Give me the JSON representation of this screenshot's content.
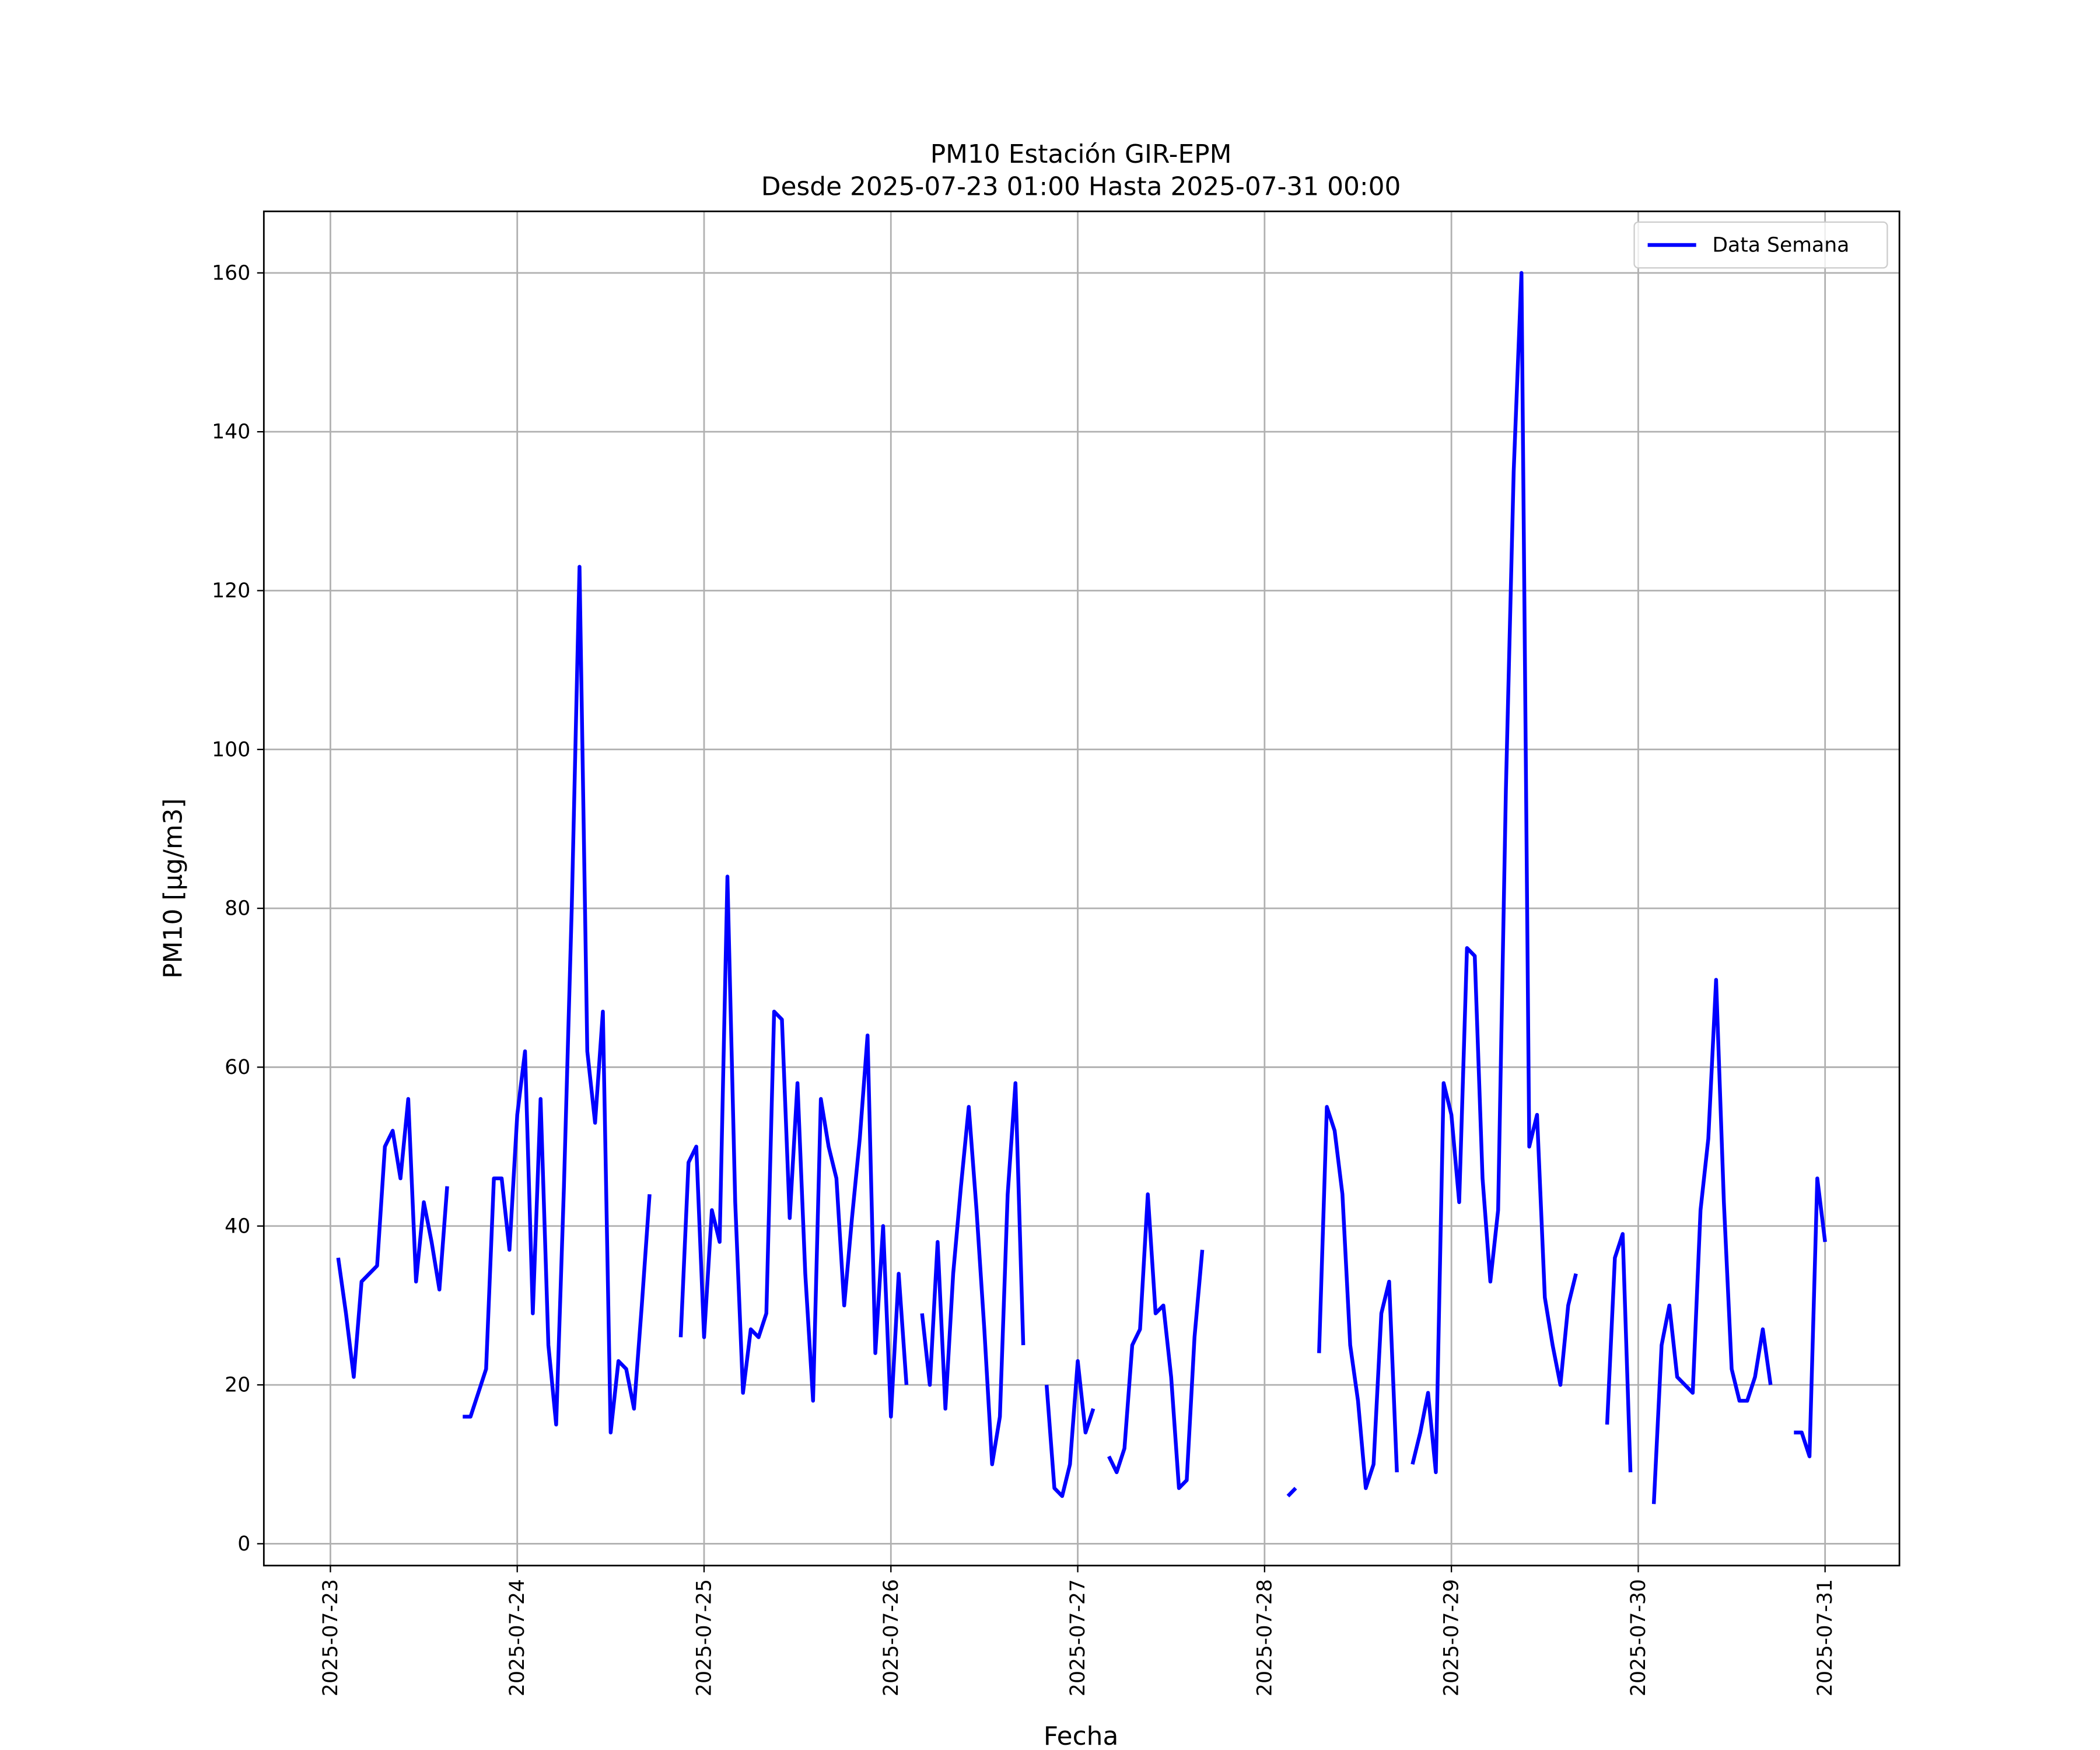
{
  "chart_data": {
    "type": "line",
    "title": "PM10 Estación GIR-EPM",
    "subtitle": "Desde 2025-07-23 01:00 Hasta 2025-07-31 00:00",
    "x_label": "Fecha",
    "y_label": "PM10 [μg/m3]",
    "x": [
      "2025-07-23 01:00",
      "2025-07-23 02:00",
      "2025-07-23 03:00",
      "2025-07-23 04:00",
      "2025-07-23 05:00",
      "2025-07-23 06:00",
      "2025-07-23 07:00",
      "2025-07-23 08:00",
      "2025-07-23 09:00",
      "2025-07-23 10:00",
      "2025-07-23 11:00",
      "2025-07-23 12:00",
      "2025-07-23 13:00",
      "2025-07-23 14:00",
      "2025-07-23 15:00",
      "2025-07-23 16:00",
      "2025-07-23 17:00",
      "2025-07-23 18:00",
      "2025-07-23 19:00",
      "2025-07-23 20:00",
      "2025-07-23 21:00",
      "2025-07-23 22:00",
      "2025-07-23 23:00",
      "2025-07-24 00:00",
      "2025-07-24 01:00",
      "2025-07-24 02:00",
      "2025-07-24 03:00",
      "2025-07-24 04:00",
      "2025-07-24 05:00",
      "2025-07-24 06:00",
      "2025-07-24 07:00",
      "2025-07-24 08:00",
      "2025-07-24 09:00",
      "2025-07-24 10:00",
      "2025-07-24 11:00",
      "2025-07-24 12:00",
      "2025-07-24 13:00",
      "2025-07-24 14:00",
      "2025-07-24 15:00",
      "2025-07-24 16:00",
      "2025-07-24 17:00",
      "2025-07-24 18:00",
      "2025-07-24 19:00",
      "2025-07-24 20:00",
      "2025-07-24 21:00",
      "2025-07-24 22:00",
      "2025-07-24 23:00",
      "2025-07-25 00:00",
      "2025-07-25 01:00",
      "2025-07-25 02:00",
      "2025-07-25 03:00",
      "2025-07-25 04:00",
      "2025-07-25 05:00",
      "2025-07-25 06:00",
      "2025-07-25 07:00",
      "2025-07-25 08:00",
      "2025-07-25 09:00",
      "2025-07-25 10:00",
      "2025-07-25 11:00",
      "2025-07-25 12:00",
      "2025-07-25 13:00",
      "2025-07-25 14:00",
      "2025-07-25 15:00",
      "2025-07-25 16:00",
      "2025-07-25 17:00",
      "2025-07-25 18:00",
      "2025-07-25 19:00",
      "2025-07-25 20:00",
      "2025-07-25 21:00",
      "2025-07-25 22:00",
      "2025-07-25 23:00",
      "2025-07-26 00:00",
      "2025-07-26 01:00",
      "2025-07-26 02:00",
      "2025-07-26 03:00",
      "2025-07-26 04:00",
      "2025-07-26 05:00",
      "2025-07-26 06:00",
      "2025-07-26 07:00",
      "2025-07-26 08:00",
      "2025-07-26 09:00",
      "2025-07-26 10:00",
      "2025-07-26 11:00",
      "2025-07-26 12:00",
      "2025-07-26 13:00",
      "2025-07-26 14:00",
      "2025-07-26 15:00",
      "2025-07-26 16:00",
      "2025-07-26 17:00",
      "2025-07-26 18:00",
      "2025-07-26 19:00",
      "2025-07-26 20:00",
      "2025-07-26 21:00",
      "2025-07-26 22:00",
      "2025-07-26 23:00",
      "2025-07-27 00:00",
      "2025-07-27 01:00",
      "2025-07-27 02:00",
      "2025-07-27 03:00",
      "2025-07-27 04:00",
      "2025-07-27 05:00",
      "2025-07-27 06:00",
      "2025-07-27 07:00",
      "2025-07-27 08:00",
      "2025-07-27 09:00",
      "2025-07-27 10:00",
      "2025-07-27 11:00",
      "2025-07-27 12:00",
      "2025-07-27 13:00",
      "2025-07-27 14:00",
      "2025-07-27 15:00",
      "2025-07-27 16:00",
      "2025-07-27 17:00",
      "2025-07-27 18:00",
      "2025-07-27 19:00",
      "2025-07-27 20:00",
      "2025-07-27 21:00",
      "2025-07-27 22:00",
      "2025-07-27 23:00",
      "2025-07-28 00:00",
      "2025-07-28 01:00",
      "2025-07-28 02:00",
      "2025-07-28 03:00",
      "2025-07-28 04:00",
      "2025-07-28 05:00",
      "2025-07-28 06:00",
      "2025-07-28 07:00",
      "2025-07-28 08:00",
      "2025-07-28 09:00",
      "2025-07-28 10:00",
      "2025-07-28 11:00",
      "2025-07-28 12:00",
      "2025-07-28 13:00",
      "2025-07-28 14:00",
      "2025-07-28 15:00",
      "2025-07-28 16:00",
      "2025-07-28 17:00",
      "2025-07-28 18:00",
      "2025-07-28 19:00",
      "2025-07-28 20:00",
      "2025-07-28 21:00",
      "2025-07-28 22:00",
      "2025-07-28 23:00",
      "2025-07-29 00:00",
      "2025-07-29 01:00",
      "2025-07-29 02:00",
      "2025-07-29 03:00",
      "2025-07-29 04:00",
      "2025-07-29 05:00",
      "2025-07-29 06:00",
      "2025-07-29 07:00",
      "2025-07-29 08:00",
      "2025-07-29 09:00",
      "2025-07-29 10:00",
      "2025-07-29 11:00",
      "2025-07-29 12:00",
      "2025-07-29 13:00",
      "2025-07-29 14:00",
      "2025-07-29 15:00",
      "2025-07-29 16:00",
      "2025-07-29 17:00",
      "2025-07-29 18:00",
      "2025-07-29 19:00",
      "2025-07-29 20:00",
      "2025-07-29 21:00",
      "2025-07-29 22:00",
      "2025-07-29 23:00",
      "2025-07-30 00:00",
      "2025-07-30 01:00",
      "2025-07-30 02:00",
      "2025-07-30 03:00",
      "2025-07-30 04:00",
      "2025-07-30 05:00",
      "2025-07-30 06:00",
      "2025-07-30 07:00",
      "2025-07-30 08:00",
      "2025-07-30 09:00",
      "2025-07-30 10:00",
      "2025-07-30 11:00",
      "2025-07-30 12:00",
      "2025-07-30 13:00",
      "2025-07-30 14:00",
      "2025-07-30 15:00",
      "2025-07-30 16:00",
      "2025-07-30 17:00",
      "2025-07-30 18:00",
      "2025-07-30 19:00",
      "2025-07-30 20:00",
      "2025-07-30 21:00",
      "2025-07-30 22:00",
      "2025-07-30 23:00",
      "2025-07-31 00:00"
    ],
    "series": [
      {
        "name": "Data Semana",
        "color": "#0000ff",
        "values": [
          36,
          29,
          21,
          33,
          34,
          35,
          50,
          52,
          46,
          56,
          33,
          43,
          38,
          32,
          45,
          null,
          16,
          16,
          19,
          22,
          46,
          46,
          37,
          54,
          62,
          29,
          56,
          25,
          15,
          45,
          80,
          123,
          62,
          53,
          67,
          14,
          23,
          22,
          17,
          30,
          44,
          null,
          null,
          null,
          26,
          48,
          50,
          26,
          42,
          38,
          84,
          43,
          19,
          27,
          26,
          29,
          67,
          66,
          41,
          58,
          34,
          18,
          56,
          50,
          46,
          30,
          41,
          51,
          64,
          24,
          40,
          16,
          34,
          20,
          null,
          29,
          20,
          38,
          17,
          34,
          45,
          55,
          42,
          27,
          10,
          16,
          44,
          58,
          25,
          null,
          null,
          20,
          7,
          6,
          10,
          23,
          14,
          17,
          null,
          11,
          9,
          12,
          25,
          27,
          44,
          29,
          30,
          21,
          7,
          8,
          26,
          37,
          null,
          null,
          null,
          null,
          null,
          null,
          null,
          null,
          null,
          null,
          6,
          7,
          null,
          null,
          24,
          55,
          52,
          44,
          25,
          18,
          7,
          10,
          29,
          33,
          9,
          null,
          10,
          14,
          19,
          9,
          58,
          54,
          43,
          75,
          74,
          46,
          33,
          42,
          95,
          135,
          160,
          50,
          54,
          31,
          25,
          20,
          30,
          34,
          null,
          null,
          null,
          15,
          36,
          39,
          9,
          null,
          null,
          5,
          25,
          30,
          21,
          20,
          19,
          42,
          51,
          71,
          43,
          22,
          18,
          18,
          21,
          27,
          20,
          null,
          null,
          14,
          14,
          11,
          46,
          38
        ]
      }
    ],
    "xlim": [
      "2025-07-22 15:27",
      "2025-07-31 09:33"
    ],
    "xticks": [
      "2025-07-23",
      "2025-07-24",
      "2025-07-25",
      "2025-07-26",
      "2025-07-27",
      "2025-07-28",
      "2025-07-29",
      "2025-07-30",
      "2025-07-31"
    ],
    "ylim": [
      -2.75,
      167.75
    ],
    "yticks": [
      0,
      20,
      40,
      60,
      80,
      100,
      120,
      140,
      160
    ],
    "grid": true,
    "legend": "upper right"
  }
}
